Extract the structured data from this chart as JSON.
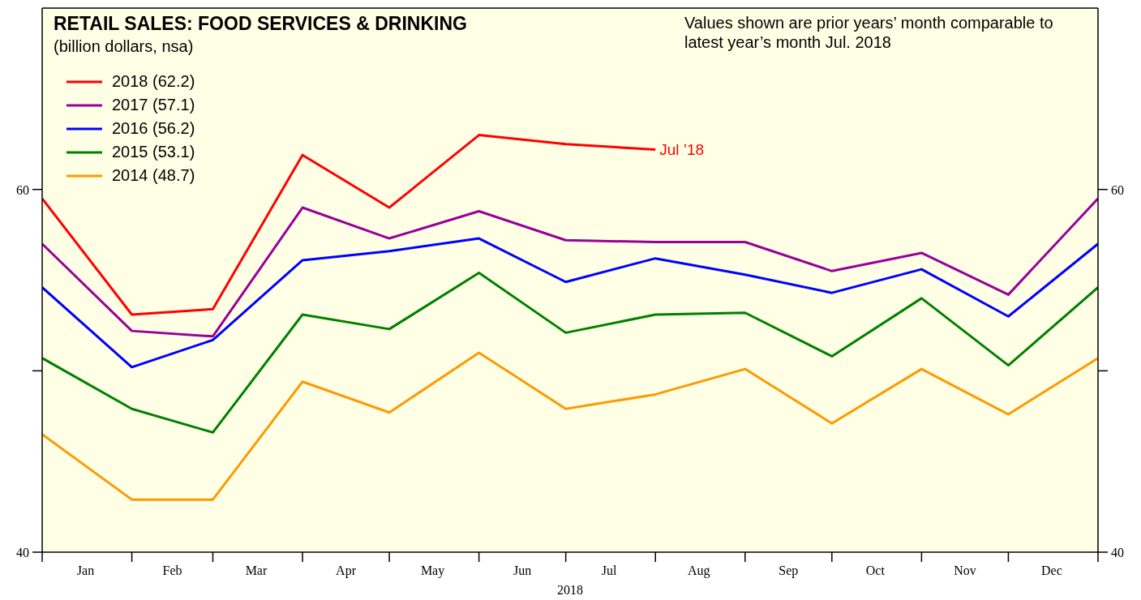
{
  "chart_data": {
    "type": "line",
    "title": "RETAIL SALES: FOOD SERVICES & DRINKING",
    "subtitle": "(billion dollars, nsa)",
    "xlabel": "2018",
    "annotations": [
      "Values shown are prior years’ month comparable to latest year’s month Jul. 2018",
      {
        "text": "Jul ’18",
        "x": "2018-08-01",
        "y": 62.2
      }
    ],
    "x": [
      "2018-01-01",
      "2018-02-01",
      "2018-03-01",
      "2018-04-01",
      "2018-05-01",
      "2018-06-01",
      "2018-07-01",
      "2018-08-01",
      "2018-09-01",
      "2018-10-01",
      "2018-11-01",
      "2018-12-01",
      "2019-01-01"
    ],
    "xlim": [
      "2018-01-01",
      "2019-01-01"
    ],
    "xticks": [
      {
        "value": "2018-01-01",
        "label": null
      },
      {
        "value": "2018-01-16",
        "label": "Jan"
      },
      {
        "value": "2018-02-01",
        "label": null
      },
      {
        "value": "2018-02-15",
        "label": "Feb"
      },
      {
        "value": "2018-03-01",
        "label": null
      },
      {
        "value": "2018-03-16",
        "label": "Mar"
      },
      {
        "value": "2018-04-01",
        "label": null
      },
      {
        "value": "2018-04-16",
        "label": "Apr"
      },
      {
        "value": "2018-05-01",
        "label": null
      },
      {
        "value": "2018-05-16",
        "label": "May"
      },
      {
        "value": "2018-06-01",
        "label": null
      },
      {
        "value": "2018-06-16",
        "label": "Jun"
      },
      {
        "value": "2018-07-01",
        "label": null
      },
      {
        "value": "2018-07-16",
        "label": "Jul"
      },
      {
        "value": "2018-08-01",
        "label": null
      },
      {
        "value": "2018-08-16",
        "label": "Aug"
      },
      {
        "value": "2018-09-01",
        "label": null
      },
      {
        "value": "2018-09-16",
        "label": "Sep"
      },
      {
        "value": "2018-10-01",
        "label": null
      },
      {
        "value": "2018-10-16",
        "label": "Oct"
      },
      {
        "value": "2018-11-01",
        "label": null
      },
      {
        "value": "2018-11-16",
        "label": "Nov"
      },
      {
        "value": "2018-12-01",
        "label": null
      },
      {
        "value": "2018-12-16",
        "label": "Dec"
      },
      {
        "value": "2019-01-01",
        "label": null
      }
    ],
    "ylim": [
      40,
      70
    ],
    "yticks": [
      40,
      {
        "value": 50,
        "label": null
      },
      60
    ],
    "y2lim": [
      40,
      70
    ],
    "y2ticks": [
      40,
      {
        "value": 50,
        "label": null
      },
      60
    ],
    "series": [
      {
        "name": "2018 (62.2)",
        "color": "#ff0000",
        "values": [
          59.5,
          53.1,
          53.4,
          61.9,
          59.0,
          63.0,
          62.5,
          62.2,
          null,
          null,
          null,
          null,
          null
        ]
      },
      {
        "name": "2017 (57.1)",
        "color": "#990099",
        "values": [
          57.0,
          52.2,
          51.9,
          59.0,
          57.3,
          58.8,
          57.2,
          57.1,
          57.1,
          55.5,
          56.5,
          54.2,
          59.5
        ]
      },
      {
        "name": "2016 (56.2)",
        "color": "#0000ff",
        "values": [
          54.6,
          50.2,
          51.7,
          56.1,
          56.6,
          57.3,
          54.9,
          56.2,
          55.3,
          54.3,
          55.6,
          53.0,
          57.0
        ]
      },
      {
        "name": "2015 (53.1)",
        "color": "#008000",
        "values": [
          50.7,
          47.9,
          46.6,
          53.1,
          52.3,
          55.4,
          52.1,
          53.1,
          53.2,
          50.8,
          54.0,
          50.3,
          54.6
        ]
      },
      {
        "name": "2014 (48.7)",
        "color": "#ff9900",
        "values": [
          46.5,
          42.9,
          42.9,
          49.4,
          47.7,
          51.0,
          47.9,
          48.7,
          50.1,
          47.1,
          50.1,
          47.6,
          50.7
        ]
      }
    ],
    "legend": "top left",
    "grid": false,
    "marker": "none",
    "line_style": "solid"
  }
}
